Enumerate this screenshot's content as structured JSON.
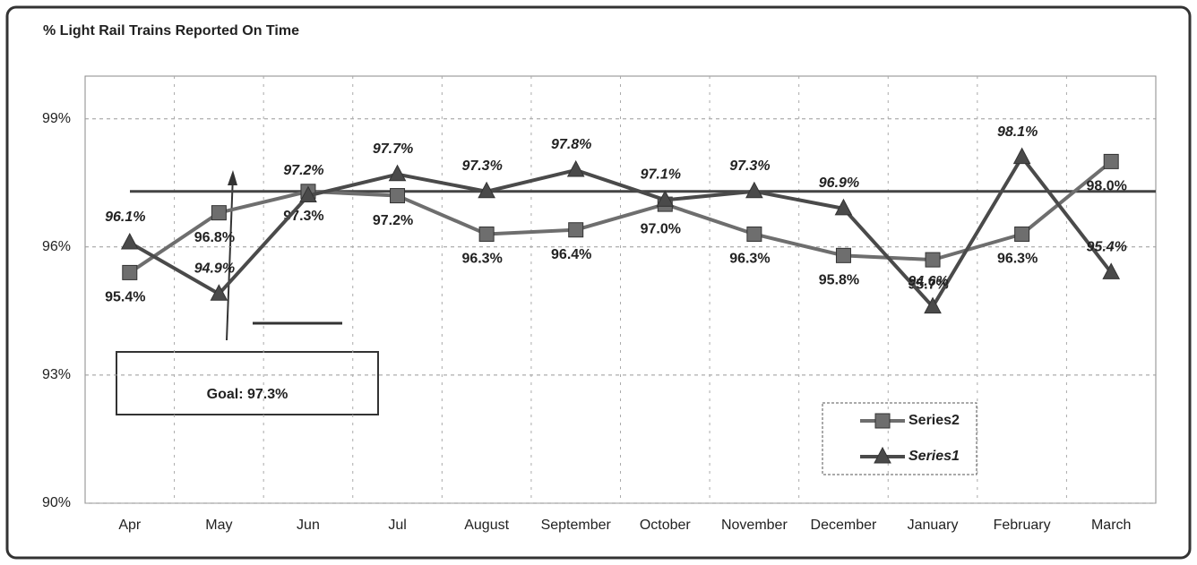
{
  "chart_data": {
    "type": "line",
    "title": "% Light Rail Trains Reported On Time",
    "categories": [
      "Apr",
      "May",
      "Jun",
      "Jul",
      "August",
      "September",
      "October",
      "November",
      "December",
      "January",
      "February",
      "March"
    ],
    "series": [
      {
        "name": "Series2",
        "color": "#6e6e6e",
        "marker": "square",
        "values": [
          95.4,
          96.8,
          97.3,
          97.2,
          96.3,
          96.4,
          97.0,
          96.3,
          95.8,
          95.7,
          96.3,
          98.0
        ],
        "value_labels": [
          "95.4%",
          "96.8%",
          "97.3%",
          "97.2%",
          "96.3%",
          "96.4%",
          "97.0%",
          "96.3%",
          "95.8%",
          "95.7%",
          "96.3%",
          "98.0%"
        ]
      },
      {
        "name": "Series1",
        "color": "#4a4a4a",
        "marker": "triangle",
        "values": [
          96.1,
          94.9,
          97.2,
          97.7,
          97.3,
          97.8,
          97.1,
          97.3,
          96.9,
          94.6,
          98.1,
          95.4
        ],
        "value_labels": [
          "96.1%",
          "94.9%",
          "97.2%",
          "97.7%",
          "97.3%",
          "97.8%",
          "97.1%",
          "97.3%",
          "96.9%",
          "94.6%",
          "98.1%",
          "95.4%"
        ]
      }
    ],
    "goal": {
      "value": 97.3,
      "label": "Goal:  97.3%"
    },
    "ylim": [
      90,
      100
    ],
    "yticks": [
      {
        "value": 90,
        "label": "90%"
      },
      {
        "value": 93,
        "label": "93%"
      },
      {
        "value": 96,
        "label": "96%"
      },
      {
        "value": 99,
        "label": "99%"
      }
    ],
    "grid": true,
    "legend": "lower right"
  }
}
